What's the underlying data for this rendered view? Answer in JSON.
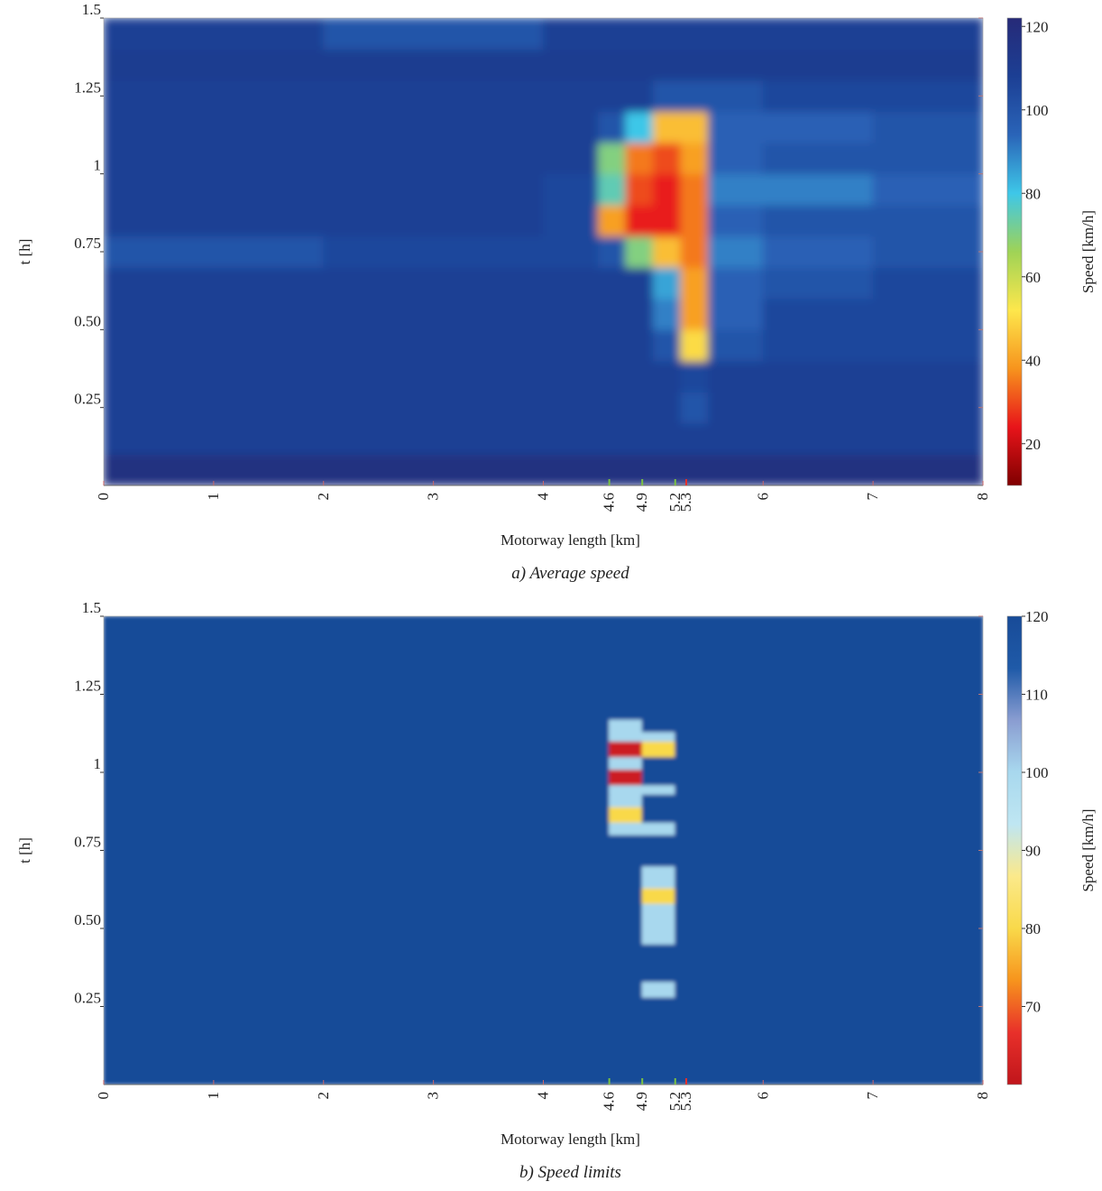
{
  "chart_data": [
    {
      "type": "heatmap",
      "caption": "a) Average speed",
      "x_label": "Motorway length [km]",
      "y_label": "t [h]",
      "colorbar_label": "Speed [km/h]",
      "xlim": [
        0,
        8
      ],
      "ylim": [
        0,
        1.5
      ],
      "xticks": [
        0,
        1,
        2,
        3,
        4,
        6,
        7,
        8
      ],
      "xticks_extra": [
        4.6,
        4.9,
        5.2,
        5.3
      ],
      "xticks_extra_colors": [
        "#7ac143",
        "#7ac143",
        "#7ac143",
        "#e8302a"
      ],
      "yticks": [
        0.25,
        {
          "value": 0.5,
          "label": "0.50"
        },
        0.75,
        1,
        1.25,
        1.5
      ],
      "x_edges": [
        0,
        1,
        2,
        3,
        4,
        4.5,
        4.75,
        5,
        5.25,
        5.5,
        6,
        7,
        8
      ],
      "y_edges": [
        0,
        0.1,
        0.2,
        0.3,
        0.4,
        0.5,
        0.6,
        0.7,
        0.8,
        0.9,
        1.0,
        1.1,
        1.2,
        1.3,
        1.4,
        1.5
      ],
      "z": [
        [
          118,
          118,
          118,
          118,
          118,
          118,
          118,
          118,
          118,
          118,
          118,
          118
        ],
        [
          108,
          108,
          108,
          108,
          108,
          108,
          108,
          108,
          108,
          108,
          108,
          108
        ],
        [
          108,
          108,
          108,
          108,
          108,
          108,
          108,
          108,
          100,
          108,
          108,
          108
        ],
        [
          108,
          108,
          108,
          108,
          108,
          108,
          108,
          108,
          105,
          108,
          108,
          108
        ],
        [
          108,
          108,
          108,
          108,
          108,
          108,
          108,
          100,
          50,
          100,
          105,
          105
        ],
        [
          108,
          108,
          108,
          108,
          108,
          108,
          108,
          90,
          40,
          95,
          105,
          105
        ],
        [
          108,
          108,
          108,
          108,
          108,
          108,
          108,
          85,
          40,
          95,
          100,
          105
        ],
        [
          100,
          100,
          105,
          105,
          105,
          100,
          70,
          45,
          35,
          90,
          95,
          100
        ],
        [
          108,
          108,
          108,
          108,
          105,
          40,
          25,
          25,
          35,
          95,
          100,
          100
        ],
        [
          108,
          108,
          108,
          108,
          105,
          75,
          30,
          25,
          35,
          90,
          90,
          95
        ],
        [
          108,
          108,
          108,
          108,
          108,
          70,
          35,
          30,
          40,
          95,
          100,
          100
        ],
        [
          108,
          108,
          108,
          108,
          108,
          100,
          80,
          45,
          45,
          95,
          95,
          100
        ],
        [
          108,
          108,
          108,
          108,
          108,
          108,
          108,
          100,
          100,
          100,
          105,
          105
        ],
        [
          110,
          110,
          110,
          110,
          110,
          110,
          110,
          110,
          110,
          110,
          110,
          110
        ],
        [
          108,
          108,
          100,
          100,
          108,
          108,
          108,
          108,
          108,
          108,
          108,
          108
        ]
      ],
      "clim": [
        10,
        122
      ],
      "cticks": [
        20,
        40,
        60,
        80,
        100,
        120
      ],
      "colorscale": [
        "#7f0000",
        "#e8141a",
        "#f7941d",
        "#fde74c",
        "#9fd356",
        "#3ec7e8",
        "#2a64b8",
        "#1c3f94",
        "#262a78"
      ]
    },
    {
      "type": "heatmap",
      "caption": "b) Speed limits",
      "x_label": "Motorway length [km]",
      "y_label": "t [h]",
      "colorbar_label": "Speed [km/h]",
      "xlim": [
        0,
        8
      ],
      "ylim": [
        0,
        1.5
      ],
      "xticks": [
        0,
        1,
        2,
        3,
        4,
        6,
        7,
        8
      ],
      "xticks_extra": [
        4.6,
        4.9,
        5.2,
        5.3
      ],
      "xticks_extra_colors": [
        "#7ac143",
        "#7ac143",
        "#7ac143",
        "#e8302a"
      ],
      "yticks": [
        0.25,
        {
          "value": 0.5,
          "label": "0.50"
        },
        0.75,
        1,
        1.25,
        1.5
      ],
      "x_edges": [
        0,
        4.6,
        4.9,
        5.2,
        8
      ],
      "y_edges": [
        0,
        0.28,
        0.33,
        0.45,
        0.58,
        0.63,
        0.7,
        0.8,
        0.84,
        0.89,
        0.93,
        0.96,
        1.01,
        1.05,
        1.1,
        1.13,
        1.17,
        1.5
      ],
      "z": [
        [
          120,
          120,
          120,
          120
        ],
        [
          120,
          120,
          100,
          120
        ],
        [
          120,
          120,
          120,
          120
        ],
        [
          120,
          120,
          100,
          120
        ],
        [
          120,
          120,
          80,
          120
        ],
        [
          120,
          120,
          100,
          120
        ],
        [
          120,
          120,
          120,
          120
        ],
        [
          120,
          100,
          100,
          120
        ],
        [
          120,
          80,
          120,
          120
        ],
        [
          120,
          100,
          120,
          120
        ],
        [
          120,
          100,
          100,
          120
        ],
        [
          120,
          62,
          120,
          120
        ],
        [
          120,
          100,
          120,
          120
        ],
        [
          120,
          62,
          80,
          120
        ],
        [
          120,
          100,
          100,
          120
        ],
        [
          120,
          100,
          120,
          120
        ],
        [
          120,
          120,
          120,
          120
        ]
      ],
      "clim": [
        60,
        120
      ],
      "cticks": [
        70,
        80,
        90,
        100,
        110,
        120
      ],
      "colorscale": [
        "#c0151b",
        "#e8302a",
        "#f7941d",
        "#f9d94a",
        "#fbe98a",
        "#bfe6f2",
        "#a8d8ee",
        "#8a9dd1",
        "#1f5aa8",
        "#184b98"
      ]
    }
  ]
}
